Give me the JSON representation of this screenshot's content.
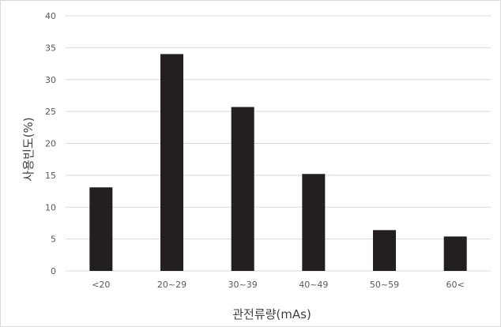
{
  "chart_data": {
    "type": "bar",
    "title": "",
    "xlabel": "관전류량(mAs)",
    "ylabel": "사용빈도(%)",
    "categories": [
      "<20",
      "20~29",
      "30~39",
      "40~49",
      "50~59",
      "60<"
    ],
    "values": [
      13.1,
      34.0,
      25.7,
      15.2,
      6.4,
      5.4
    ],
    "ylim": [
      0,
      40
    ],
    "yticks": [
      0,
      5,
      10,
      15,
      20,
      25,
      30,
      35,
      40
    ],
    "grid": true,
    "legend": "none",
    "colors": {
      "bar": "#231f20",
      "grid": "#d9d9d9",
      "tick_text": "#595959",
      "title_text": "#404040"
    }
  }
}
